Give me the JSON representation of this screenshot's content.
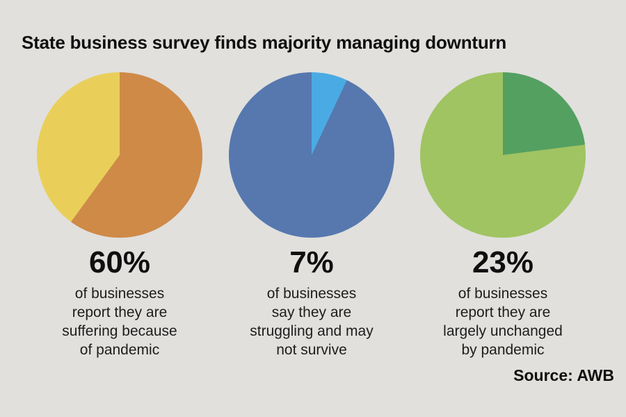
{
  "background_color": "#e1e0dd",
  "title": "State business survey finds majority managing downturn",
  "source_label": "Source: AWB",
  "chart_data": [
    {
      "type": "pie",
      "percent_label": "60%",
      "description": "of businesses\nreport they are\nsuffering because\nof pandemic",
      "start_angle_deg": 0,
      "direction": "clockwise",
      "slices": [
        {
          "label": "suffering because of pandemic",
          "value": 60,
          "color": "#cf8a48"
        },
        {
          "label": "remainder",
          "value": 40,
          "color": "#e9cf5a"
        }
      ]
    },
    {
      "type": "pie",
      "percent_label": "7%",
      "description": "of businesses\nsay they are\nstruggling and may\nnot survive",
      "start_angle_deg": 0,
      "direction": "clockwise",
      "slices": [
        {
          "label": "struggling and may not survive",
          "value": 7,
          "color": "#4aabe4"
        },
        {
          "label": "remainder",
          "value": 93,
          "color": "#5778ae"
        }
      ]
    },
    {
      "type": "pie",
      "percent_label": "23%",
      "description": "of businesses\nreport they are\nlargely unchanged\nby pandemic",
      "start_angle_deg": 0,
      "direction": "clockwise",
      "slices": [
        {
          "label": "largely unchanged by pandemic",
          "value": 23,
          "color": "#54a061"
        },
        {
          "label": "remainder",
          "value": 77,
          "color": "#a0c462"
        }
      ]
    }
  ]
}
